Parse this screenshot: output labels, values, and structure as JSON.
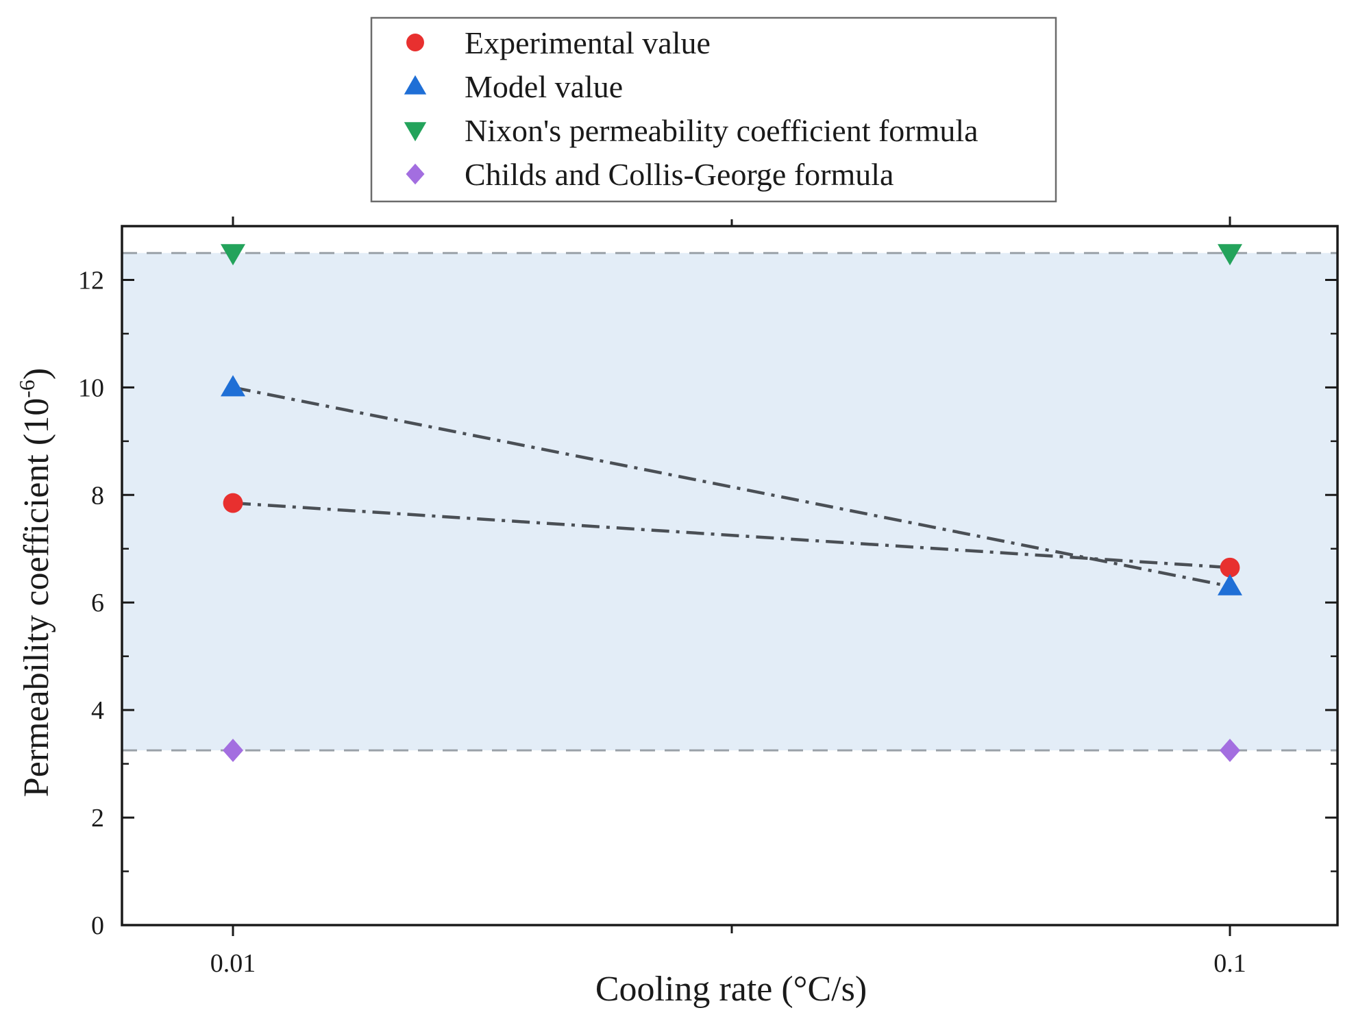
{
  "chart_data": {
    "type": "scatter",
    "title": "",
    "xlabel": "Cooling rate (°C/s)",
    "ylabel": "Permeability coefficient (10",
    "ylabel_superscript": "-6",
    "ylabel_suffix": ")",
    "x_scale": "log",
    "x_categories": [
      "0.01",
      "0.1"
    ],
    "x_values": [
      0.01,
      0.1
    ],
    "ylim": [
      0,
      13
    ],
    "y_ticks": [
      0,
      2,
      4,
      6,
      8,
      10,
      12
    ],
    "grid": false,
    "legend_placement": "top-center",
    "shaded_band": {
      "y_low": 3.25,
      "y_high": 12.5,
      "color": "#e3edf7",
      "border_color": "#9aa1a8"
    },
    "series": [
      {
        "name": "Experimental value",
        "marker": "circle",
        "color": "#e8302f",
        "x": [
          0.01,
          0.1
        ],
        "y": [
          7.85,
          6.65
        ],
        "connected": true
      },
      {
        "name": "Model value",
        "marker": "triangle-up",
        "color": "#1f6fd6",
        "x": [
          0.01,
          0.1
        ],
        "y": [
          10.0,
          6.3
        ],
        "connected": true
      },
      {
        "name": "Nixon's permeability coefficient formula",
        "marker": "triangle-down",
        "color": "#23a35b",
        "x": [
          0.01,
          0.1
        ],
        "y": [
          12.5,
          12.5
        ],
        "connected": false
      },
      {
        "name": "Childs and Collis-George formula",
        "marker": "diamond",
        "color": "#a36ee0",
        "x": [
          0.01,
          0.1
        ],
        "y": [
          3.25,
          3.25
        ],
        "connected": false
      }
    ],
    "line_color": "#4a4f55"
  }
}
